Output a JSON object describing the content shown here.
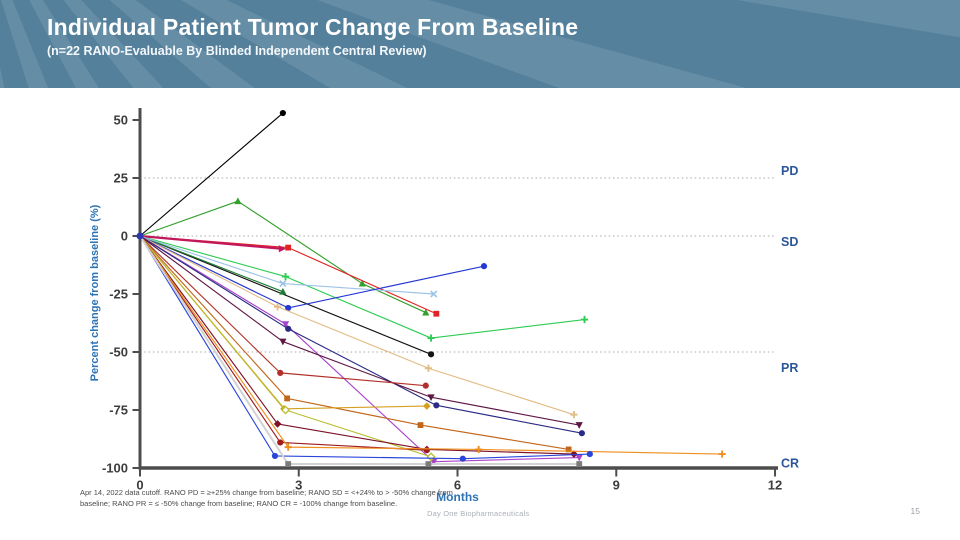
{
  "slide": {
    "title": "Individual Patient Tumor Change From Baseline",
    "subtitle": "(n=22 RANO-Evaluable By Blinded Independent Central Review)",
    "footnote": "Apr 14, 2022 data cutoff. RANO PD = ≥+25% change from baseline; RANO SD = <+24% to > -50% change from baseline; RANO PR = ≤ -50% change from baseline; RANO CR = -100% change from baseline.",
    "brand": "Day One Biopharmaceuticals",
    "page_number": "15",
    "header_bg": "#54809b",
    "accent_blue": "#2e74b5",
    "label_blue": "#2b579a"
  },
  "chart_data": {
    "type": "line",
    "title": "Individual Patient Tumor Change From Baseline",
    "xlabel": "Months",
    "ylabel": "Percent change from baseline (%)",
    "xlim": [
      0,
      12
    ],
    "ylim": [
      -100,
      55
    ],
    "x_ticks": [
      0,
      3,
      6,
      9,
      12
    ],
    "y_ticks": [
      50,
      25,
      0,
      -25,
      -50,
      -75,
      -100
    ],
    "grid": "dotted-reference-lines-only",
    "legend": "none",
    "origin_dot_color": "#2d35b0",
    "reference_lines": [
      {
        "label": "PD",
        "y": 25,
        "label_y": 28,
        "dotted": true
      },
      {
        "label": "SD",
        "y": 0,
        "label_y": -2.5,
        "dotted": true
      },
      {
        "label": "PR",
        "y": -50,
        "label_y": -57,
        "dotted": true
      },
      {
        "label": "CR",
        "y": -100,
        "label_y": -98,
        "dotted": false
      }
    ],
    "series": [
      {
        "name": "patient-01",
        "color": "#000000",
        "marker": "circle",
        "points": [
          [
            0,
            0
          ],
          [
            2.7,
            53
          ]
        ]
      },
      {
        "name": "patient-02",
        "color": "#141414",
        "marker": "circle",
        "points": [
          [
            0,
            0
          ],
          [
            5.5,
            -51
          ]
        ]
      },
      {
        "name": "patient-03",
        "color": "#33a02c",
        "marker": "triangle-up",
        "points": [
          [
            0,
            0
          ],
          [
            1.85,
            15
          ],
          [
            4.2,
            -20.5
          ],
          [
            5.4,
            -33
          ]
        ]
      },
      {
        "name": "patient-04",
        "color": "#1e7d32",
        "marker": "triangle-up",
        "points": [
          [
            0,
            0
          ],
          [
            2.7,
            -24
          ]
        ]
      },
      {
        "name": "patient-05",
        "color": "#2ecc52",
        "marker": "plus",
        "points": [
          [
            0,
            0
          ],
          [
            2.75,
            -17.5
          ],
          [
            5.5,
            -44
          ],
          [
            8.4,
            -36
          ]
        ]
      },
      {
        "name": "patient-06",
        "color": "#e02424",
        "marker": "square",
        "points": [
          [
            0,
            0
          ],
          [
            2.8,
            -5
          ],
          [
            5.6,
            -33.5
          ]
        ]
      },
      {
        "name": "patient-07",
        "color": "#c2185b",
        "marker": "triangle-right",
        "points": [
          [
            0,
            0
          ],
          [
            2.68,
            -5.5
          ]
        ],
        "width": 2.2
      },
      {
        "name": "patient-08",
        "color": "#9dc3e6",
        "marker": "x",
        "points": [
          [
            0,
            0
          ],
          [
            2.7,
            -20.5
          ],
          [
            5.55,
            -25
          ]
        ]
      },
      {
        "name": "patient-09",
        "color": "#2638d4",
        "marker": "circle",
        "points": [
          [
            0,
            0
          ],
          [
            2.8,
            -31
          ],
          [
            6.5,
            -13
          ]
        ]
      },
      {
        "name": "patient-10",
        "color": "#e2bd85",
        "marker": "plus",
        "points": [
          [
            0,
            0
          ],
          [
            2.6,
            -30.5
          ],
          [
            5.45,
            -57
          ],
          [
            8.2,
            -77
          ]
        ]
      },
      {
        "name": "patient-11",
        "color": "#aa44cc",
        "marker": "triangle-down",
        "points": [
          [
            0,
            0
          ],
          [
            2.75,
            -38
          ],
          [
            5.55,
            -97.3
          ],
          [
            8.3,
            -95.5
          ]
        ]
      },
      {
        "name": "patient-12",
        "color": "#2b2b85",
        "marker": "circle",
        "points": [
          [
            0,
            0
          ],
          [
            2.8,
            -40
          ],
          [
            5.6,
            -73
          ],
          [
            8.35,
            -85
          ]
        ]
      },
      {
        "name": "patient-13",
        "color": "#5e1745",
        "marker": "triangle-down",
        "points": [
          [
            0,
            0
          ],
          [
            2.7,
            -45.5
          ],
          [
            5.5,
            -69.5
          ],
          [
            8.3,
            -81.5
          ]
        ]
      },
      {
        "name": "patient-14",
        "color": "#b3302a",
        "marker": "circle",
        "points": [
          [
            0,
            0
          ],
          [
            2.65,
            -59
          ],
          [
            5.4,
            -64.5
          ]
        ]
      },
      {
        "name": "patient-15",
        "color": "#c2661a",
        "marker": "square",
        "points": [
          [
            0,
            0
          ],
          [
            2.78,
            -70
          ],
          [
            5.3,
            -81.5
          ],
          [
            8.1,
            -92
          ]
        ]
      },
      {
        "name": "patient-16",
        "color": "#d5a021",
        "marker": "diamond",
        "points": [
          [
            0,
            0
          ],
          [
            2.72,
            -74.5
          ],
          [
            5.42,
            -73.3
          ]
        ]
      },
      {
        "name": "patient-17",
        "color": "#b9bd2e",
        "marker": "diamond-open",
        "points": [
          [
            0,
            0
          ],
          [
            2.75,
            -75
          ],
          [
            5.5,
            -95.2
          ]
        ]
      },
      {
        "name": "patient-18",
        "color": "#7d1128",
        "marker": "diamond",
        "points": [
          [
            0,
            0
          ],
          [
            2.6,
            -81
          ],
          [
            5.42,
            -92
          ],
          [
            8.2,
            -94
          ]
        ]
      },
      {
        "name": "patient-19",
        "color": "#9e1c1c",
        "marker": "circle",
        "points": [
          [
            0,
            0
          ],
          [
            2.65,
            -89
          ],
          [
            5.42,
            -92.3
          ]
        ]
      },
      {
        "name": "patient-20",
        "color": "#ef8f1f",
        "marker": "plus",
        "points": [
          [
            0,
            0
          ],
          [
            2.8,
            -91
          ],
          [
            6.4,
            -92
          ],
          [
            11,
            -94
          ]
        ]
      },
      {
        "name": "patient-21",
        "color": "#2a46d9",
        "marker": "circle",
        "points": [
          [
            0,
            0
          ],
          [
            2.55,
            -94.8
          ],
          [
            6.1,
            -96
          ],
          [
            8.5,
            -94
          ]
        ]
      },
      {
        "name": "patient-22",
        "color": "#7d7d7d",
        "line_color": "#d2d2d2",
        "marker": "square",
        "width": 2,
        "points": [
          [
            0,
            0
          ],
          [
            2.8,
            -98.3
          ],
          [
            5.45,
            -98.3
          ],
          [
            8.3,
            -98.3
          ]
        ]
      }
    ]
  }
}
